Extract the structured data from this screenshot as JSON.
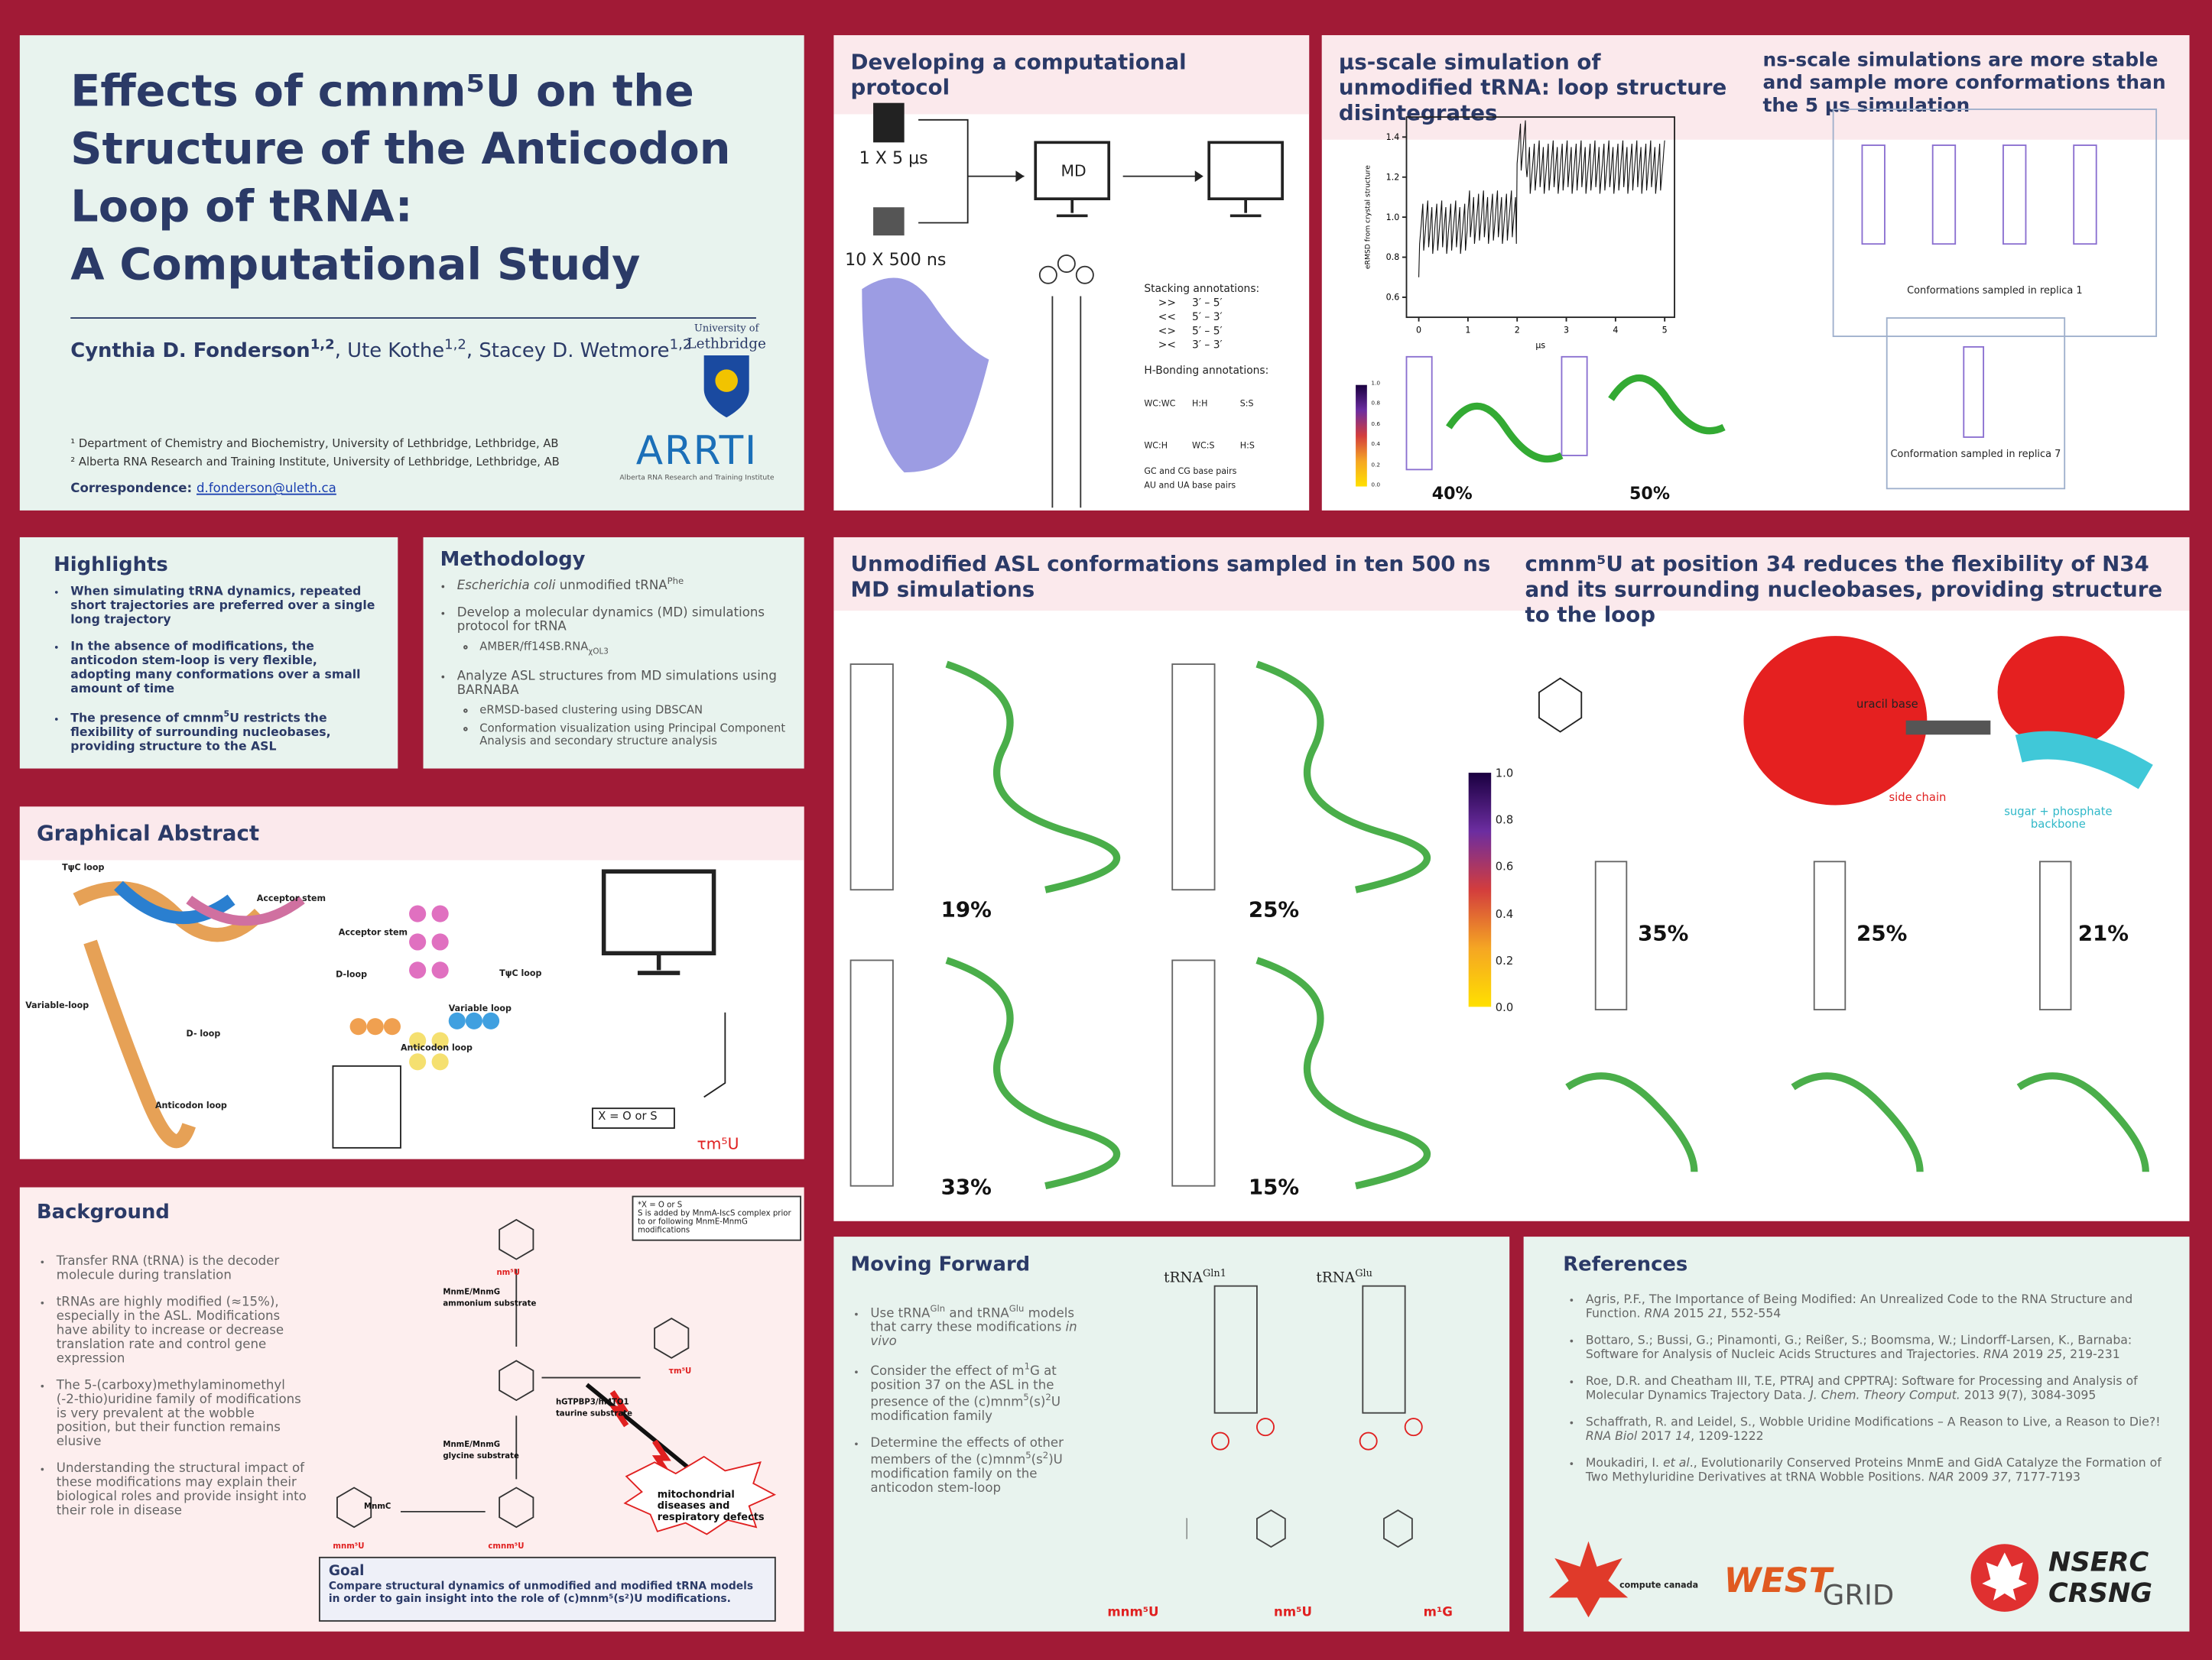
{
  "title_panel": {
    "lines": [
      "Effects of cmnm⁵U on the",
      "Structure of the Anticodon",
      "Loop of tRNA:",
      "A Computational Study"
    ],
    "authors": [
      {
        "name": "Cynthia D. Fonderson",
        "sup": "1,2"
      },
      {
        "name": "Ute Kothe",
        "sup": "1,2"
      },
      {
        "name": "Stacey D. Wetmore",
        "sup": "1,2"
      }
    ],
    "affiliations": [
      "¹ Department of Chemistry and Biochemistry, University of Lethbridge, Lethbridge, AB",
      "² Alberta RNA Research and Training Institute, University of Lethbridge, Lethbridge, AB"
    ],
    "correspondence_label": "Correspondence:",
    "email": "d.fonderson@uleth.ca",
    "uleth_lines": [
      "University of",
      "Lethbridge"
    ],
    "arti": "ARRTI",
    "arti_sub": "Alberta RNA Research and Training Institute"
  },
  "highlights": {
    "title": "Highlights",
    "items": [
      "When simulating tRNA dynamics, repeated short trajectories are preferred over a single long trajectory",
      "In the absence of modifications, the anticodon stem-loop is very flexible, adopting many conformations over a small amount of time",
      [
        {
          "text": "The presence of cmnm"
        },
        {
          "text": "5",
          "style": "sup"
        },
        {
          "text": "U restricts the flexibility of surrounding nucleobases, providing structure to the ASL"
        }
      ]
    ]
  },
  "methodology": {
    "title": "Methodology",
    "items": [
      {
        "text": [
          {
            "text": "Escherichia coli",
            "style": "i"
          },
          {
            "text": " unmodified tRNA"
          },
          {
            "text": "Phe",
            "style": "sup"
          }
        ]
      },
      {
        "text": "Develop a molecular dynamics (MD) simulations protocol for tRNA",
        "sub": [
          [
            {
              "text": "AMBER/ff14SB.RNA"
            },
            {
              "text": "χOL3",
              "style": "sub"
            }
          ]
        ]
      },
      {
        "text": "Analyze ASL structures from MD simulations using BARNABA",
        "sub": [
          "eRMSD-based clustering using DBSCAN",
          "Conformation visualization using Principal Component Analysis and secondary structure analysis"
        ]
      }
    ]
  },
  "graphical_abstract": {
    "title": "Graphical Abstract",
    "labels": [
      "TψC loop",
      "Acceptor stem",
      "Variable-loop",
      "D- loop",
      "Anticodon loop",
      "Acceptor stem",
      "D-loop",
      "TψC loop",
      "Variable loop",
      "Anticodon loop"
    ],
    "x_note": "X = O or S",
    "compound": "τm⁵U"
  },
  "background": {
    "title": "Background",
    "items": [
      "Transfer RNA (tRNA) is the decoder molecule during translation",
      "tRNAs are highly modified (≈15%), especially in the ASL. Modifications have ability to increase or decrease translation rate and control gene expression",
      "The 5-(carboxy)methylaminomethyl (-2-thio)uridine family of modifications is very prevalent at the wobble position, but their function remains elusive",
      "Understanding the structural impact of these modifications may explain their biological roles and provide insight into their role in disease"
    ],
    "note": [
      "*X = O or S",
      "S is added by MnmA-IscS complex prior to or following MnmE-MnmG modifications"
    ],
    "scheme": {
      "nm5u": "nm⁵U",
      "enzyme1": "MnmE/MnmG",
      "substrate1": "ammonium substrate",
      "enzyme2": "hGTPBP3/hMTO1",
      "substrate2": "taurine substrate",
      "tm5u": "τm⁵U",
      "enzyme3": "MnmE/MnmG",
      "substrate3": "glycine substrate",
      "enzyme4": "MnmC",
      "mnm5u": "mnm⁵U",
      "cmnm5u": "cmnm⁵U",
      "disease": "mitochondrial diseases and respiratory defects"
    },
    "goal_title": "Goal",
    "goal_text": "Compare structural dynamics of unmodified and modified tRNA models in order to gain insight into the role of (c)mnm⁵(s²)U modifications."
  },
  "protocol": {
    "title": "Developing a computational protocol",
    "run1": "1 X 5 μs",
    "run2": "10 X 500 ns",
    "md": "MD",
    "stacking_title": "Stacking annotations:",
    "stacking": [
      [
        ">>",
        "3′ – 5′"
      ],
      [
        "<<",
        "5′ – 3′"
      ],
      [
        "<>",
        "5′ – 5′"
      ],
      [
        "><",
        "3′ – 3′"
      ]
    ],
    "hbond_title": "H-Bonding annotations:",
    "hbond": [
      "WC:WC",
      "H:H",
      "S:S",
      "WC:H",
      "WC:S",
      "H:S"
    ],
    "pairs": [
      "GC and CG base pairs",
      "AU and UA base pairs"
    ]
  },
  "simulation": {
    "title_left": "μs-scale simulation of unmodified tRNA: loop structure disintegrates",
    "title_right": "ns-scale simulations are more stable and sample more conformations than the 5 μs simulation",
    "chart": {
      "xlim": [
        -0.25,
        5.2
      ],
      "ylim": [
        0.5,
        1.5
      ],
      "xticks": [
        0,
        1,
        2,
        3,
        4,
        5
      ],
      "yticks": [
        0.6,
        0.8,
        {
          "value": 1,
          "label": "1.0"
        },
        1.2,
        1.4
      ],
      "xlabel": "μs",
      "ylabel": "eRMSD from crystal structure"
    },
    "colorbar_ticks": [
      {
        "value": 1,
        "label": "1.0"
      },
      0.8,
      0.6,
      0.4,
      0.2,
      {
        "value": 0,
        "label": "0.0"
      }
    ],
    "percent_left": "40%",
    "percent_right": "50%",
    "caption1": "Conformations sampled in replica 1",
    "caption2": "Conformation sampled in replica 7"
  },
  "asl": {
    "title_left": "Unmodified ASL conformations sampled in ten 500 ns MD simulations",
    "title_right": "cmnm⁵U at position 34 reduces the flexibility of N34 and its surrounding nucleobases, providing structure to the loop",
    "percents_left": [
      "19%",
      "25%",
      "33%",
      "15%"
    ],
    "colorbar_ticks": [
      {
        "value": 1,
        "label": "1.0"
      },
      0.8,
      0.6,
      0.4,
      0.2,
      {
        "value": 0,
        "label": "0.0"
      }
    ],
    "labels": {
      "uracil": "uracil base",
      "side": "side chain",
      "sugar": "sugar + phosphate backbone"
    },
    "percents_right": [
      "35%",
      "25%",
      "21%"
    ]
  },
  "moving_forward": {
    "title": "Moving Forward",
    "items": [
      [
        {
          "text": "Use tRNA"
        },
        {
          "text": "Gln",
          "style": "sup"
        },
        {
          "text": " and tRNA"
        },
        {
          "text": "Glu",
          "style": "sup"
        },
        {
          "text": " models that carry these modifications "
        },
        {
          "text": "in vivo",
          "style": "i"
        }
      ],
      [
        {
          "text": "Consider the effect of m"
        },
        {
          "text": "1",
          "style": "sup"
        },
        {
          "text": "G at position 37 on the ASL in the presence of the (c)mnm"
        },
        {
          "text": "5",
          "style": "sup"
        },
        {
          "text": "(s)"
        },
        {
          "text": "2",
          "style": "sup"
        },
        {
          "text": "U modification family"
        }
      ],
      [
        {
          "text": "Determine the effects of other members of the (c)mnm"
        },
        {
          "text": "5",
          "style": "sup"
        },
        {
          "text": "(s"
        },
        {
          "text": "2",
          "style": "sup"
        },
        {
          "text": ")U modification family on the anticodon stem-loop"
        }
      ]
    ],
    "trna1": [
      {
        "text": "tRNA"
      },
      {
        "text": "Gln1",
        "style": "sup"
      }
    ],
    "trna2": [
      {
        "text": "tRNA"
      },
      {
        "text": "Glu",
        "style": "sup"
      }
    ],
    "compounds": [
      "mnm⁵U",
      "nm⁵U",
      "m¹G"
    ]
  },
  "references": {
    "title": "References",
    "items": [
      [
        {
          "text": "Agris, P.F., The Importance of Being Modified: An Unrealized Code to the RNA Structure and Function. "
        },
        {
          "text": "RNA",
          "style": "i"
        },
        {
          "text": " 2015 "
        },
        {
          "text": "21",
          "style": "i"
        },
        {
          "text": ", 552-554"
        }
      ],
      [
        {
          "text": "Bottaro, S.; Bussi, G.; Pinamonti, G.; Reißer, S.; Boomsma, W.; Lindorff-Larsen, K., Barnaba: Software for Analysis of Nucleic Acids Structures and Trajectories. "
        },
        {
          "text": "RNA",
          "style": "i"
        },
        {
          "text": " 2019 "
        },
        {
          "text": "25",
          "style": "i"
        },
        {
          "text": ", 219-231"
        }
      ],
      [
        {
          "text": "Roe, D.R. and Cheatham III, T.E, PTRAJ and CPPTRAJ: Software for Processing and Analysis of Molecular Dynamics Trajectory Data. "
        },
        {
          "text": "J. Chem. Theory Comput.",
          "style": "i"
        },
        {
          "text": " 2013 "
        },
        {
          "text": "9",
          "style": "i"
        },
        {
          "text": "(7), 3084-3095"
        }
      ],
      [
        {
          "text": "Schaffrath, R. and Leidel, S., Wobble Uridine Modifications – A Reason to Live, a Reason to Die?! "
        },
        {
          "text": "RNA Biol",
          "style": "i"
        },
        {
          "text": " 2017 "
        },
        {
          "text": "14",
          "style": "i"
        },
        {
          "text": ", 1209-1222"
        }
      ],
      [
        {
          "text": "Moukadiri, I. "
        },
        {
          "text": "et al",
          "style": "i"
        },
        {
          "text": "., Evolutionarily Conserved Proteins MnmE and GidA Catalyze the Formation of Two Methyluridine Derivatives at tRNA Wobble Positions. "
        },
        {
          "text": "NAR",
          "style": "i"
        },
        {
          "text": " 2009 "
        },
        {
          "text": "37",
          "style": "i"
        },
        {
          "text": ", 7177-7193"
        }
      ]
    ],
    "logos": {
      "compute": "compute canada",
      "west": "WEST",
      "grid": "GRID",
      "nserc": "NSERC",
      "crsng": "CRSNG"
    }
  }
}
